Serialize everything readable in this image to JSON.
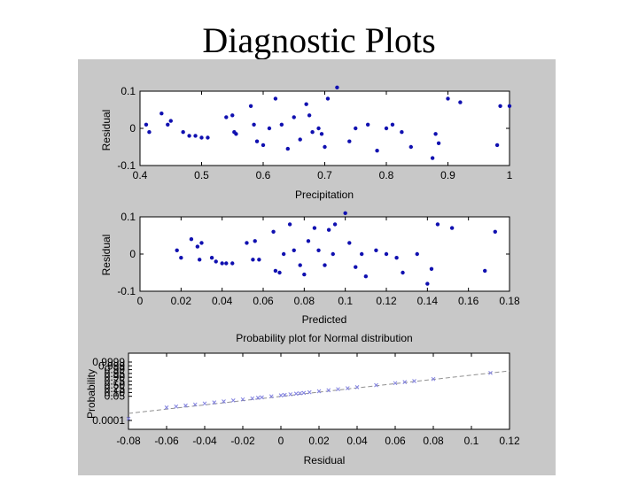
{
  "page": {
    "title": "Diagnostic Plots"
  },
  "colors": {
    "panel_bg": "#c8c8c8",
    "axes_bg": "#ffffff",
    "residual_marker": "#1010b0",
    "prob_marker": "#8080e0",
    "ref_line": "#909090"
  },
  "chart_data": [
    {
      "type": "scatter",
      "title": "",
      "xlabel": "Precipitation",
      "ylabel": "Residual",
      "xlim": [
        0.4,
        1.0
      ],
      "ylim": [
        -0.1,
        0.1
      ],
      "xticks": [
        "0.4",
        "0.5",
        "0.6",
        "0.7",
        "0.8",
        "0.9",
        "1"
      ],
      "yticks": [
        "-0.1",
        "0",
        "0.1"
      ],
      "grid": false,
      "series": [
        {
          "x": [
            0.41,
            0.415,
            0.435,
            0.445,
            0.45,
            0.47,
            0.48,
            0.49,
            0.5,
            0.51,
            0.54,
            0.55,
            0.553,
            0.556,
            0.58,
            0.585,
            0.59,
            0.6,
            0.61,
            0.62,
            0.63,
            0.64,
            0.65,
            0.66,
            0.67,
            0.675,
            0.68,
            0.69,
            0.695,
            0.7,
            0.705,
            0.72,
            0.74,
            0.75,
            0.77,
            0.785,
            0.8,
            0.81,
            0.825,
            0.84,
            0.875,
            0.88,
            0.885,
            0.9,
            0.92,
            0.98,
            0.985,
            1.0
          ],
          "y": [
            0.01,
            -0.01,
            0.04,
            0.01,
            0.02,
            -0.01,
            -0.02,
            -0.02,
            -0.025,
            -0.025,
            0.03,
            0.035,
            -0.01,
            -0.015,
            0.06,
            0.01,
            -0.035,
            -0.045,
            0.0,
            0.08,
            0.01,
            -0.055,
            0.03,
            -0.03,
            0.065,
            0.035,
            -0.01,
            0.0,
            -0.015,
            -0.05,
            0.08,
            0.11,
            -0.035,
            0.0,
            0.01,
            -0.06,
            0.0,
            0.01,
            -0.01,
            -0.05,
            -0.08,
            -0.015,
            -0.04,
            0.08,
            0.07,
            -0.045,
            0.06,
            0.06
          ]
        }
      ]
    },
    {
      "type": "scatter",
      "title": "",
      "xlabel": "Predicted",
      "ylabel": "Residual",
      "xlim": [
        0,
        0.18
      ],
      "ylim": [
        -0.1,
        0.1
      ],
      "xticks": [
        "0",
        "0.02",
        "0.04",
        "0.06",
        "0.08",
        "0.1",
        "0.12",
        "0.14",
        "0.16",
        "0.18"
      ],
      "yticks": [
        "-0.1",
        "0",
        "0.1"
      ],
      "grid": false,
      "series": [
        {
          "x": [
            0.018,
            0.02,
            0.025,
            0.028,
            0.029,
            0.03,
            0.035,
            0.037,
            0.04,
            0.042,
            0.045,
            0.052,
            0.055,
            0.056,
            0.058,
            0.065,
            0.066,
            0.068,
            0.07,
            0.073,
            0.075,
            0.078,
            0.08,
            0.082,
            0.085,
            0.087,
            0.09,
            0.092,
            0.094,
            0.095,
            0.1,
            0.102,
            0.105,
            0.108,
            0.11,
            0.115,
            0.12,
            0.125,
            0.128,
            0.135,
            0.14,
            0.142,
            0.145,
            0.152,
            0.168,
            0.173
          ],
          "y": [
            0.01,
            -0.01,
            0.04,
            0.02,
            -0.015,
            0.03,
            -0.01,
            -0.02,
            -0.025,
            -0.025,
            -0.025,
            0.03,
            -0.015,
            0.035,
            -0.015,
            0.06,
            -0.045,
            -0.05,
            0.0,
            0.08,
            0.01,
            -0.03,
            -0.055,
            0.035,
            0.07,
            0.01,
            -0.03,
            0.065,
            0.0,
            0.08,
            0.11,
            0.03,
            -0.035,
            0.0,
            -0.06,
            0.01,
            0.0,
            -0.01,
            -0.05,
            0.0,
            -0.08,
            -0.04,
            0.08,
            0.07,
            -0.045,
            0.06
          ]
        }
      ]
    },
    {
      "type": "scatter",
      "title": "Probability plot for Normal distribution",
      "xlabel": "Residual",
      "ylabel": "Probability",
      "xlim": [
        -0.08,
        0.12
      ],
      "xticks": [
        "-0.08",
        "-0.06",
        "-0.04",
        "-0.02",
        "0",
        "0.02",
        "0.04",
        "0.06",
        "0.08",
        "0.1",
        "0.12"
      ],
      "yticks": [
        "0.0001",
        "0.05",
        "0.10",
        "0.25",
        "0.50",
        "0.75",
        "0.90",
        "0.95",
        "0.99",
        "0.999",
        "0.9999"
      ],
      "grid": false,
      "series": [
        {
          "x": [
            -0.08,
            -0.06,
            -0.055,
            -0.05,
            -0.045,
            -0.04,
            -0.035,
            -0.03,
            -0.025,
            -0.02,
            -0.015,
            -0.012,
            -0.01,
            -0.005,
            0.0,
            0.002,
            0.005,
            0.008,
            0.01,
            0.012,
            0.015,
            0.02,
            0.025,
            0.03,
            0.035,
            0.04,
            0.05,
            0.06,
            0.065,
            0.07,
            0.08,
            0.11
          ],
          "p": [
            0.0001,
            0.02,
            0.03,
            0.05,
            0.07,
            0.1,
            0.13,
            0.16,
            0.2,
            0.24,
            0.28,
            0.31,
            0.34,
            0.38,
            0.42,
            0.45,
            0.48,
            0.51,
            0.54,
            0.57,
            0.6,
            0.63,
            0.66,
            0.7,
            0.74,
            0.78,
            0.82,
            0.86,
            0.9,
            0.93,
            0.96,
            0.99
          ]
        }
      ]
    }
  ]
}
